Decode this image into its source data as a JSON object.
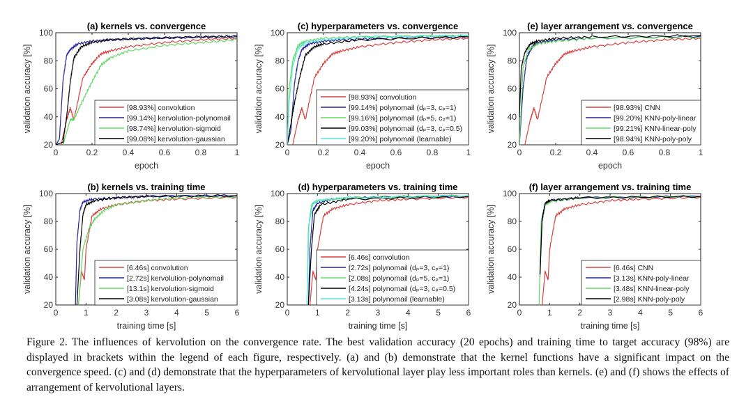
{
  "colors": {
    "red": "#d9403f",
    "blue": "#23239a",
    "green": "#63d863",
    "black": "#000000",
    "cyan": "#56e6e0"
  },
  "caption": "Figure 2. The influences of kervolution on the convergence rate. The best validation accuracy (20 epochs) and training time to target accuracy (98%) are displayed in brackets within the legend of each figure, respectively. (a) and (b) demonstrate that the kernel functions have a significant impact on the convergence speed. (c) and (d) demonstrate that the hyperparameters of kervolutional layer play less important roles than kernels. (e) and (f) shows the effects of arrangement of kervolutional layers.",
  "chart_data": [
    {
      "id": "a",
      "type": "line",
      "title": "(a) kernels vs. convergence",
      "xlabel": "epoch",
      "ylabel": "validation accuracy [%]",
      "xlim": [
        0,
        1
      ],
      "ylim": [
        20,
        100
      ],
      "xticks": [
        "0",
        "0.2",
        "0.4",
        "0.6",
        "0.8",
        "1"
      ],
      "yticks": [
        "20",
        "40",
        "60",
        "80",
        "100"
      ],
      "grid": false,
      "legend": "bottom-right",
      "series": [
        {
          "name": "[98.93%] convolution",
          "color": "red",
          "x": [
            0.03,
            0.06,
            0.08,
            0.1,
            0.15,
            0.2,
            0.25,
            0.3,
            0.4,
            0.6,
            0.8,
            1
          ],
          "y": [
            20,
            38,
            46,
            38,
            68,
            78,
            85,
            87,
            90,
            93,
            95,
            96
          ]
        },
        {
          "name": "[99.14%] kervolution-polynomail",
          "color": "blue",
          "x": [
            0,
            0.02,
            0.04,
            0.06,
            0.08,
            0.12,
            0.2,
            0.3,
            0.5,
            0.8,
            1
          ],
          "y": [
            20,
            24,
            66,
            84,
            88,
            92,
            94,
            95,
            96,
            97,
            97
          ]
        },
        {
          "name": "[98.74%] kervolution-sigmoid",
          "color": "green",
          "x": [
            0.04,
            0.08,
            0.1,
            0.15,
            0.2,
            0.25,
            0.3,
            0.4,
            0.6,
            0.8,
            1
          ],
          "y": [
            20,
            38,
            38,
            52,
            65,
            77,
            82,
            87,
            91,
            93,
            95
          ]
        },
        {
          "name": "[99.08%] kervolution-gaussian",
          "color": "black",
          "x": [
            0,
            0.04,
            0.06,
            0.08,
            0.1,
            0.14,
            0.2,
            0.3,
            0.5,
            0.8,
            1
          ],
          "y": [
            20,
            22,
            40,
            65,
            82,
            90,
            93,
            95,
            96,
            97,
            97.5
          ]
        }
      ]
    },
    {
      "id": "c",
      "type": "line",
      "title": "(c) hyperparameters vs. convergence",
      "xlabel": "epoch",
      "ylabel": "validation accuracy [%]",
      "xlim": [
        0,
        1
      ],
      "ylim": [
        20,
        100
      ],
      "xticks": [
        "0",
        "0.2",
        "0.4",
        "0.6",
        "0.8",
        "1"
      ],
      "yticks": [
        "20",
        "40",
        "60",
        "80",
        "100"
      ],
      "grid": false,
      "legend": "bottom-right",
      "series": [
        {
          "name": "[98.93%] convolution",
          "color": "red",
          "x": [
            0.03,
            0.06,
            0.08,
            0.1,
            0.15,
            0.2,
            0.25,
            0.3,
            0.4,
            0.6,
            0.8,
            1
          ],
          "y": [
            20,
            38,
            46,
            38,
            68,
            78,
            85,
            87,
            90,
            93,
            95,
            96
          ]
        },
        {
          "name": "[99.14%] polynomail (dₚ=3, cₚ=1)",
          "color": "blue",
          "x": [
            0,
            0.02,
            0.04,
            0.06,
            0.08,
            0.12,
            0.2,
            0.3,
            0.5,
            0.8,
            1
          ],
          "y": [
            20,
            30,
            64,
            80,
            88,
            92,
            94,
            95,
            96,
            97,
            97
          ]
        },
        {
          "name": "[99.16%] polynomail (dₚ=5, cₚ=1)",
          "color": "green",
          "x": [
            0,
            0.01,
            0.03,
            0.06,
            0.1,
            0.2,
            0.4,
            1
          ],
          "y": [
            20,
            60,
            80,
            91,
            94,
            96,
            97,
            98
          ]
        },
        {
          "name": "[99.03%] polynomail (dₚ=3, cₚ=0.5)",
          "color": "black",
          "x": [
            0,
            0.02,
            0.04,
            0.07,
            0.1,
            0.15,
            0.2,
            0.4,
            1
          ],
          "y": [
            20,
            35,
            50,
            69,
            84,
            90,
            92,
            95,
            97
          ]
        },
        {
          "name": "[99.20%] polynomail (learnable)",
          "color": "cyan",
          "x": [
            0,
            0.01,
            0.03,
            0.06,
            0.1,
            0.2,
            0.4,
            1
          ],
          "y": [
            20,
            50,
            76,
            89,
            93,
            95,
            97,
            98
          ]
        }
      ]
    },
    {
      "id": "e",
      "type": "line",
      "title": "(e) layer arrangement vs. convergence",
      "xlabel": "epoch",
      "ylabel": "validation accuracy [%]",
      "xlim": [
        0,
        1
      ],
      "ylim": [
        20,
        100
      ],
      "xticks": [
        "0",
        "0.2",
        "0.4",
        "0.6",
        "0.8",
        "1"
      ],
      "yticks": [
        "20",
        "40",
        "60",
        "80",
        "100"
      ],
      "grid": false,
      "legend": "bottom-right",
      "series": [
        {
          "name": "[98.93%] CNN",
          "color": "red",
          "x": [
            0.03,
            0.06,
            0.08,
            0.1,
            0.15,
            0.2,
            0.25,
            0.3,
            0.4,
            0.6,
            0.8,
            1
          ],
          "y": [
            20,
            38,
            46,
            38,
            68,
            78,
            85,
            87,
            90,
            93,
            95,
            96
          ]
        },
        {
          "name": "[99.20%] KNN-poly-linear",
          "color": "blue",
          "x": [
            0,
            0.02,
            0.04,
            0.07,
            0.1,
            0.2,
            0.4,
            1
          ],
          "y": [
            20,
            60,
            82,
            90,
            93,
            95,
            96,
            97.5
          ]
        },
        {
          "name": "[99.21%] KNN-linear-poly",
          "color": "green",
          "x": [
            0,
            0.02,
            0.05,
            0.1,
            0.2,
            0.4,
            1
          ],
          "y": [
            20,
            75,
            88,
            92,
            94,
            96,
            97
          ]
        },
        {
          "name": "[98.94%] KNN-poly-poly",
          "color": "black",
          "x": [
            0,
            0.01,
            0.03,
            0.06,
            0.1,
            0.2,
            0.4,
            1
          ],
          "y": [
            40,
            75,
            86,
            92,
            94,
            96,
            97,
            98
          ]
        }
      ]
    },
    {
      "id": "b",
      "type": "line",
      "title": "(b) kernels vs. training time",
      "xlabel": "training time [s]",
      "ylabel": "validation accuracy [%]",
      "xlim": [
        0,
        6
      ],
      "ylim": [
        20,
        100
      ],
      "xticks": [
        "0",
        "1",
        "2",
        "3",
        "4",
        "5",
        "6"
      ],
      "yticks": [
        "20",
        "40",
        "60",
        "80",
        "100"
      ],
      "grid": false,
      "legend": "bottom-right",
      "series": [
        {
          "name": "[6.46s] convolution",
          "color": "red",
          "x": [
            0.75,
            0.85,
            0.95,
            1.0,
            1.2,
            1.5,
            2,
            3,
            4,
            6
          ],
          "y": [
            20,
            44,
            38,
            60,
            84,
            89,
            92,
            95,
            96,
            97.5
          ]
        },
        {
          "name": "[2.72s] kervolution-polynomail",
          "color": "blue",
          "x": [
            0.65,
            0.7,
            0.8,
            0.9,
            1.2,
            2,
            3,
            6
          ],
          "y": [
            20,
            65,
            88,
            94,
            96,
            97,
            98,
            98.5
          ]
        },
        {
          "name": "[13.1s] kervolution-sigmoid",
          "color": "green",
          "x": [
            0.75,
            0.9,
            1.1,
            1.3,
            1.6,
            2,
            3,
            4,
            6
          ],
          "y": [
            20,
            60,
            75,
            82,
            88,
            92,
            95,
            97,
            97.5
          ]
        },
        {
          "name": "[3.08s] kervolution-gaussian",
          "color": "black",
          "x": [
            0.7,
            0.8,
            0.9,
            1.0,
            1.3,
            2,
            3,
            6
          ],
          "y": [
            20,
            60,
            85,
            92,
            95,
            97,
            98,
            98.5
          ]
        }
      ]
    },
    {
      "id": "d",
      "type": "line",
      "title": "(d) hyperparameters vs. training time",
      "xlabel": "training time [s]",
      "ylabel": "validation accuracy [%]",
      "xlim": [
        0,
        6
      ],
      "ylim": [
        20,
        100
      ],
      "xticks": [
        "0",
        "1",
        "2",
        "3",
        "4",
        "5",
        "6"
      ],
      "yticks": [
        "20",
        "40",
        "60",
        "80",
        "100"
      ],
      "grid": false,
      "legend": "bottom-right",
      "series": [
        {
          "name": "[6.46s] convolution",
          "color": "red",
          "x": [
            0.75,
            0.85,
            0.95,
            1.0,
            1.2,
            1.5,
            2,
            3,
            4,
            6
          ],
          "y": [
            20,
            44,
            38,
            60,
            84,
            89,
            92,
            95,
            96,
            97.5
          ]
        },
        {
          "name": "[2.72s] polynomail (dₚ=3, cₚ=1)",
          "color": "blue",
          "x": [
            0.7,
            0.75,
            0.85,
            1,
            1.5,
            3,
            6
          ],
          "y": [
            20,
            60,
            88,
            93,
            96,
            97.5,
            98
          ]
        },
        {
          "name": "[2.08s] polynomail (dₚ=5, cₚ=1)",
          "color": "green",
          "x": [
            0.65,
            0.7,
            0.8,
            1,
            2,
            6
          ],
          "y": [
            20,
            75,
            92,
            95,
            97,
            98.5
          ]
        },
        {
          "name": "[4.24s] polynomail (dₚ=3, cₚ=0.5)",
          "color": "black",
          "x": [
            0.7,
            0.8,
            0.9,
            1.1,
            2,
            6
          ],
          "y": [
            20,
            60,
            85,
            92,
            96,
            98
          ]
        },
        {
          "name": "[3.13s] polynomail (learnable)",
          "color": "cyan",
          "x": [
            0.65,
            0.72,
            0.85,
            1,
            2,
            6
          ],
          "y": [
            20,
            78,
            93,
            95,
            97,
            98.5
          ]
        }
      ]
    },
    {
      "id": "f",
      "type": "line",
      "title": "(f) layer arrangement vs. training time",
      "xlabel": "training time [s]",
      "ylabel": "validation accuracy [%]",
      "xlim": [
        0,
        6
      ],
      "ylim": [
        20,
        100
      ],
      "xticks": [
        "0",
        "1",
        "2",
        "3",
        "4",
        "5",
        "6"
      ],
      "yticks": [
        "20",
        "40",
        "60",
        "80",
        "100"
      ],
      "grid": false,
      "legend": "bottom-right",
      "series": [
        {
          "name": "[6.46s] CNN",
          "color": "red",
          "x": [
            0.75,
            0.85,
            0.95,
            1.0,
            1.2,
            1.5,
            2,
            3,
            4,
            6
          ],
          "y": [
            20,
            44,
            38,
            60,
            84,
            89,
            92,
            95,
            96,
            97.5
          ]
        },
        {
          "name": "[3.13s] KNN-poly-linear",
          "color": "blue",
          "x": [
            0.68,
            0.75,
            0.85,
            1,
            2,
            6
          ],
          "y": [
            40,
            80,
            92,
            95,
            97,
            98
          ]
        },
        {
          "name": "[3.48s] KNN-linear-poly",
          "color": "green",
          "x": [
            0.65,
            0.72,
            0.85,
            1,
            2,
            6
          ],
          "y": [
            20,
            80,
            92,
            94,
            97,
            98
          ]
        },
        {
          "name": "[2.98s] KNN-poly-poly",
          "color": "black",
          "x": [
            0.68,
            0.75,
            0.85,
            1,
            2,
            6
          ],
          "y": [
            42,
            82,
            93,
            95,
            97,
            98
          ]
        }
      ]
    }
  ]
}
